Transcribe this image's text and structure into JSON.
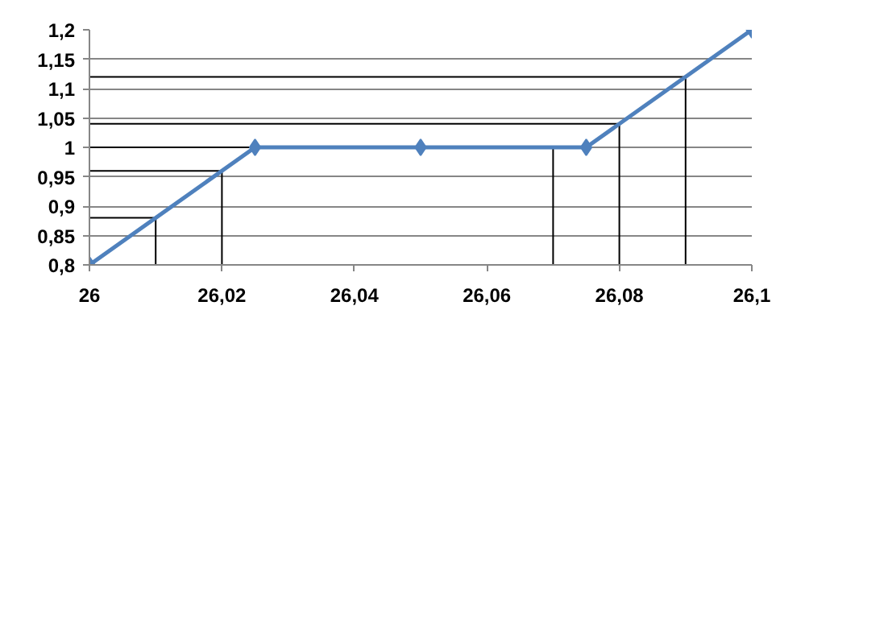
{
  "chart_data": {
    "type": "line",
    "xlim": [
      26,
      26.1
    ],
    "ylim": [
      0.8,
      1.2
    ],
    "xticks": [
      26,
      {
        "value": 26.02,
        "label": "26,02"
      },
      {
        "value": 26.04,
        "label": "26,04"
      },
      {
        "value": 26.06,
        "label": "26,06"
      },
      {
        "value": 26.08,
        "label": "26,08"
      },
      {
        "value": 26.1,
        "label": "26,1"
      }
    ],
    "yticks": [
      {
        "value": 0.8,
        "label": "0,8"
      },
      {
        "value": 0.85,
        "label": "0,85"
      },
      {
        "value": 0.9,
        "label": "0,9"
      },
      {
        "value": 0.95,
        "label": "0,95"
      },
      1,
      {
        "value": 1.05,
        "label": "1,05"
      },
      {
        "value": 1.1,
        "label": "1,1"
      },
      {
        "value": 1.15,
        "label": "1,15"
      },
      {
        "value": 1.2,
        "label": "1,2"
      }
    ],
    "grid": "y",
    "marker": "diamond",
    "line_style": "solid",
    "series": [
      {
        "color": "#000000",
        "marker": "none",
        "x": [
          26,
          26.01,
          26.01
        ],
        "values": [
          0.88,
          0.88,
          0.8
        ]
      },
      {
        "color": "#000000",
        "marker": "none",
        "x": [
          26,
          26.02,
          26.02
        ],
        "values": [
          0.96,
          0.96,
          0.8
        ]
      },
      {
        "color": "#000000",
        "marker": "none",
        "x": [
          26,
          26.07,
          26.07
        ],
        "values": [
          1.0,
          1.0,
          0.8
        ]
      },
      {
        "color": "#000000",
        "marker": "none",
        "x": [
          26,
          26.08,
          26.08
        ],
        "values": [
          1.04,
          1.04,
          0.8
        ]
      },
      {
        "color": "#000000",
        "marker": "none",
        "x": [
          26,
          26.09,
          26.09
        ],
        "values": [
          1.12,
          1.12,
          0.8
        ]
      },
      {
        "color": "#4f81bd",
        "x": [
          26,
          26.025,
          26.05,
          26.075,
          26.1
        ],
        "values": [
          0.8,
          1.0,
          1.0,
          1.0,
          1.2
        ]
      }
    ]
  }
}
